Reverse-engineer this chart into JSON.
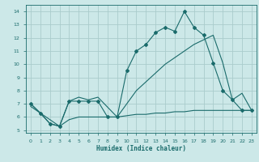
{
  "xlabel": "Humidex (Indice chaleur)",
  "bg_color": "#cce8e8",
  "grid_color": "#aacccc",
  "line_color": "#1a6b6b",
  "xlim": [
    -0.5,
    23.5
  ],
  "ylim": [
    4.8,
    14.5
  ],
  "yticks": [
    5,
    6,
    7,
    8,
    9,
    10,
    11,
    12,
    13,
    14
  ],
  "xticks": [
    0,
    1,
    2,
    3,
    4,
    5,
    6,
    7,
    8,
    9,
    10,
    11,
    12,
    13,
    14,
    15,
    16,
    17,
    18,
    19,
    20,
    21,
    22,
    23
  ],
  "series": [
    {
      "x": [
        0,
        1,
        2,
        3,
        4,
        5,
        6,
        7,
        8,
        9,
        10,
        11,
        12,
        13,
        14,
        15,
        16,
        17,
        18,
        19,
        20,
        21,
        22,
        23
      ],
      "y": [
        7.0,
        6.3,
        5.5,
        5.3,
        7.2,
        7.2,
        7.2,
        7.2,
        6.0,
        6.0,
        9.5,
        11.0,
        11.5,
        12.4,
        12.8,
        12.5,
        14.0,
        12.8,
        12.2,
        10.1,
        8.0,
        7.3,
        6.5,
        6.5
      ],
      "marker": "D",
      "markersize": 2.0
    },
    {
      "x": [
        0,
        1,
        3,
        4,
        5,
        6,
        7,
        9,
        11,
        14,
        17,
        19,
        20,
        21,
        22,
        23
      ],
      "y": [
        7.0,
        6.3,
        5.3,
        7.2,
        7.5,
        7.3,
        7.5,
        6.0,
        8.0,
        10.0,
        11.5,
        12.2,
        10.1,
        7.3,
        7.8,
        6.5
      ]
    },
    {
      "x": [
        0,
        1,
        2,
        3,
        4,
        5,
        6,
        7,
        8,
        9,
        10,
        11,
        12,
        13,
        14,
        15,
        16,
        17,
        18,
        19,
        20,
        21,
        22,
        23
      ],
      "y": [
        6.8,
        6.3,
        5.5,
        5.3,
        5.8,
        6.0,
        6.0,
        6.0,
        6.0,
        6.0,
        6.1,
        6.2,
        6.2,
        6.3,
        6.3,
        6.4,
        6.4,
        6.5,
        6.5,
        6.5,
        6.5,
        6.5,
        6.5,
        6.5
      ]
    }
  ]
}
